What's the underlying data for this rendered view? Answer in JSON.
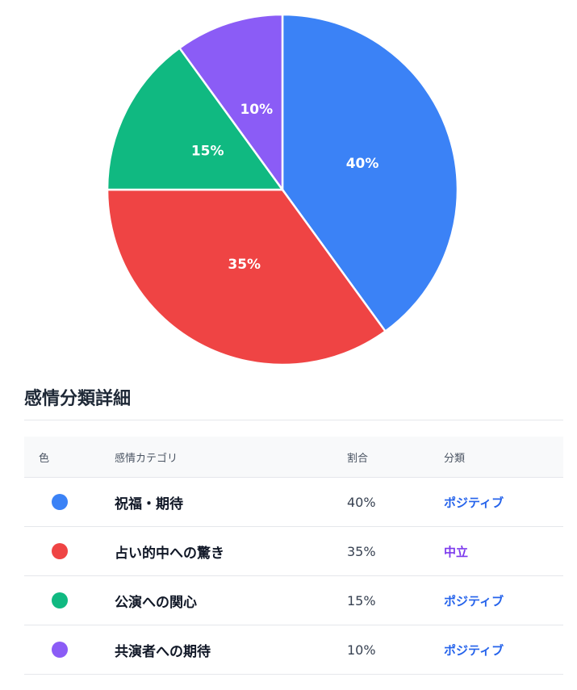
{
  "chart_data": {
    "type": "pie",
    "categories": [
      "祝福・期待",
      "占い的中への驚き",
      "公演への関心",
      "共演者への期待"
    ],
    "values": [
      40,
      35,
      15,
      10
    ],
    "labels": [
      "40%",
      "35%",
      "15%",
      "10%"
    ],
    "colors": [
      "#3b82f6",
      "#ef4444",
      "#10b981",
      "#8b5cf6"
    ],
    "title": "",
    "legend": "none"
  },
  "details": {
    "title": "感情分類詳細",
    "headers": {
      "color": "色",
      "category": "感情カテゴリ",
      "ratio": "割合",
      "class": "分類"
    },
    "rows": [
      {
        "category": "祝福・期待",
        "ratio": "40%",
        "class": "ポジティブ",
        "dot_color": "#3b82f6",
        "class_color": "#2563eb"
      },
      {
        "category": "占い的中への驚き",
        "ratio": "35%",
        "class": "中立",
        "dot_color": "#ef4444",
        "class_color": "#7c3aed"
      },
      {
        "category": "公演への関心",
        "ratio": "15%",
        "class": "ポジティブ",
        "dot_color": "#10b981",
        "class_color": "#2563eb"
      },
      {
        "category": "共演者への期待",
        "ratio": "10%",
        "class": "ポジティブ",
        "dot_color": "#8b5cf6",
        "class_color": "#2563eb"
      }
    ]
  }
}
